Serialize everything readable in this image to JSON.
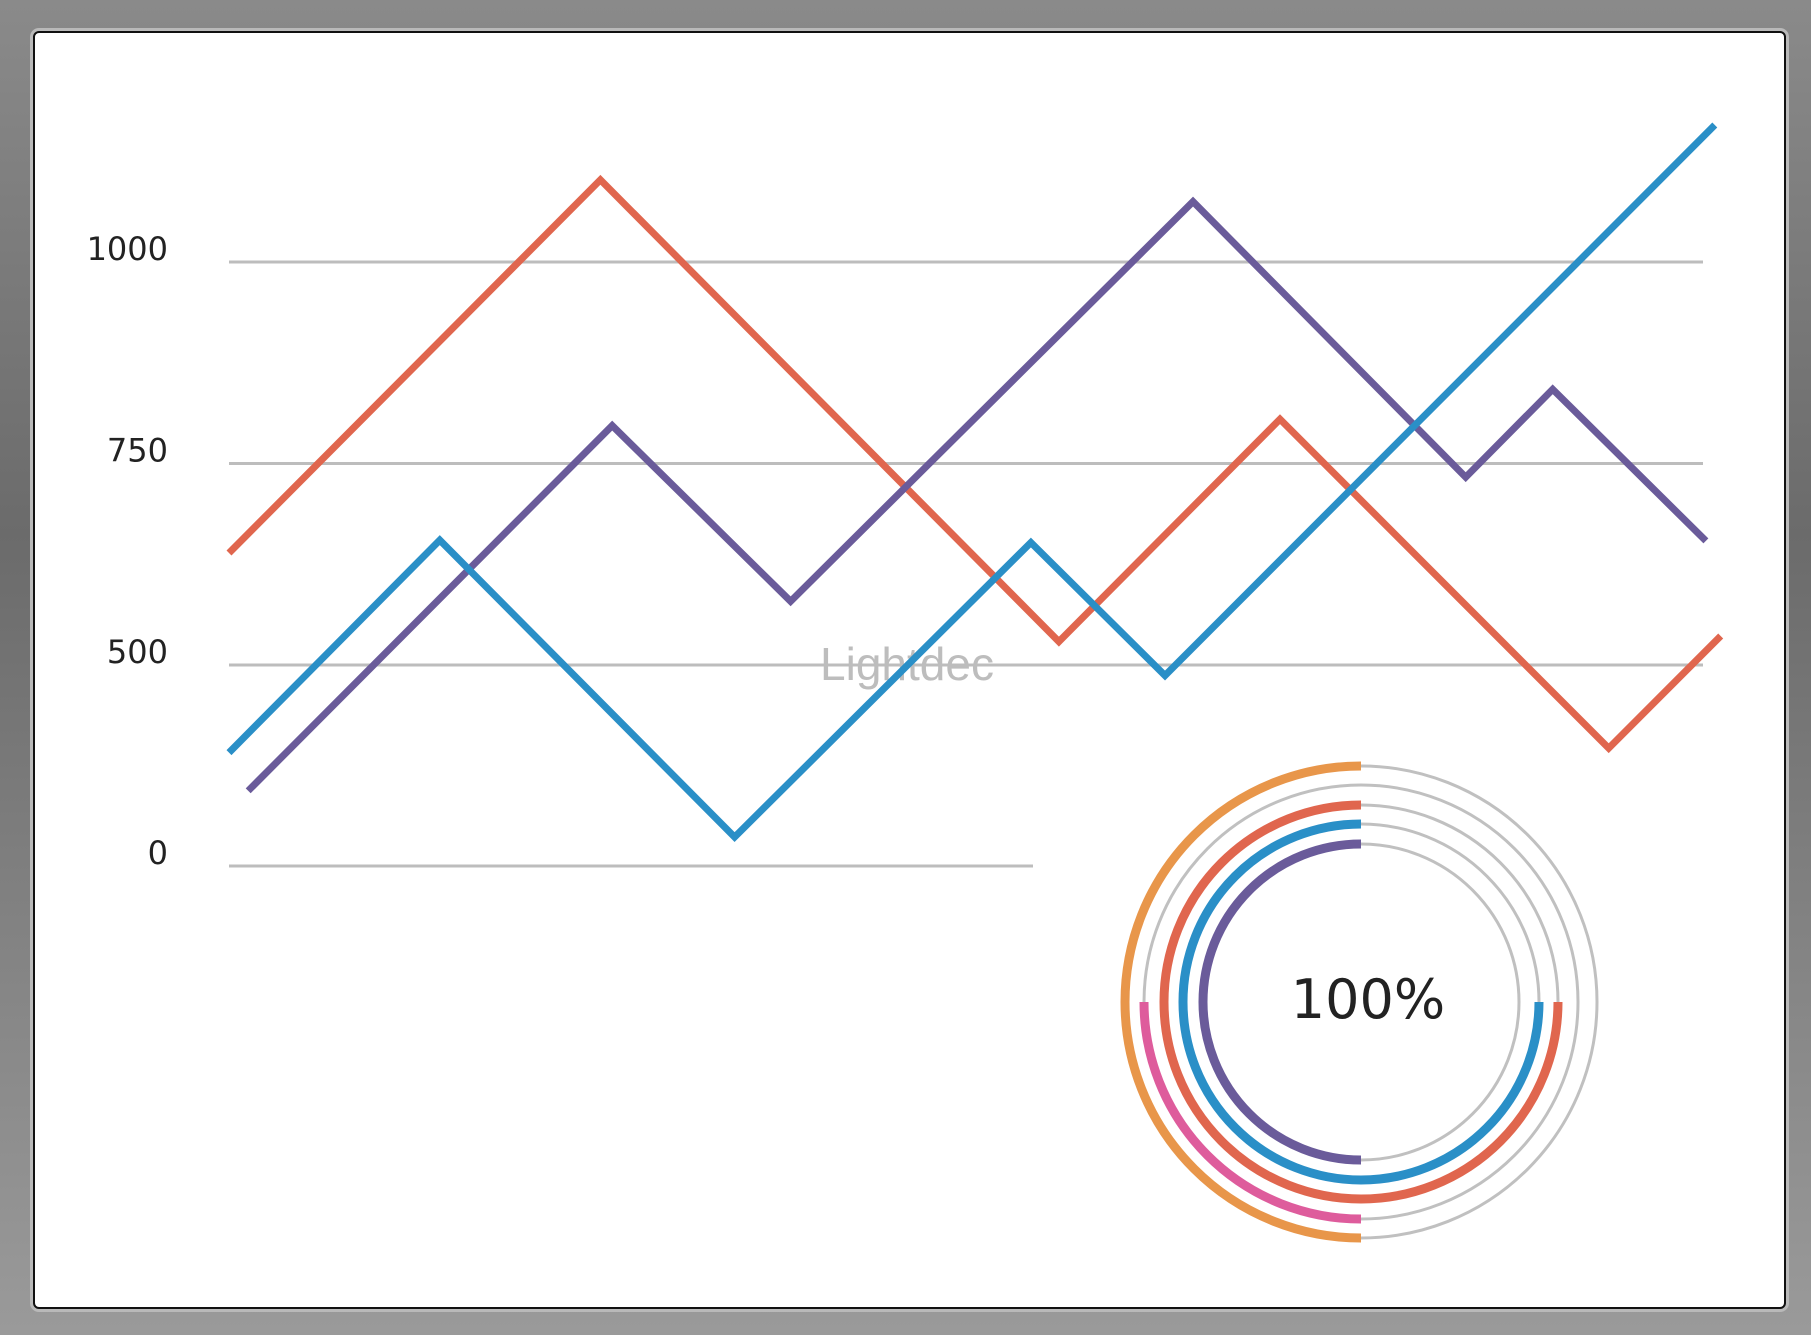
{
  "chart_data": [
    {
      "type": "line",
      "title": "",
      "xlabel": "",
      "ylabel": "",
      "y_ticks": [
        {
          "value": 1000,
          "label": "1000"
        },
        {
          "value": 750,
          "label": "750"
        },
        {
          "value": 500,
          "label": "500"
        },
        {
          "value": 0,
          "label": "0"
        }
      ],
      "ylim": [
        0,
        1170
      ],
      "xlim": [
        0,
        100
      ],
      "grid": true,
      "legend": "none",
      "series": [
        {
          "color": "#E0664E",
          "x": [
            0,
            25.2,
            56.3,
            71.3,
            93.6,
            101.2
          ],
          "y": [
            639,
            1102,
            529,
            805,
            293,
            536
          ]
        },
        {
          "color": "#6A5B9A",
          "x": [
            1.3,
            26,
            38.1,
            65.4,
            83.9,
            89.8,
            100.2
          ],
          "y": [
            187,
            797,
            579,
            1075,
            733,
            842,
            654
          ]
        },
        {
          "color": "#2A8FC7",
          "x": [
            0,
            14.3,
            34.3,
            54.4,
            63.5,
            100.8
          ],
          "y": [
            282,
            655,
            72,
            652,
            474,
            1170
          ]
        }
      ]
    },
    {
      "type": "radial-progress",
      "center_label": "100%",
      "track_color": "#C0C0C0",
      "rings": [
        {
          "color": "#E8964A",
          "fraction": 0.5,
          "start": "top"
        },
        {
          "color": "#DE5C9C",
          "fraction": 0.25,
          "start": "left"
        },
        {
          "color": "#E0664E",
          "fraction": 0.75,
          "start": "top"
        },
        {
          "color": "#2A8FC7",
          "fraction": 0.75,
          "start": "top"
        },
        {
          "color": "#6A5B9A",
          "fraction": 0.5,
          "start": "top"
        }
      ]
    }
  ],
  "watermark": "Lightdec"
}
